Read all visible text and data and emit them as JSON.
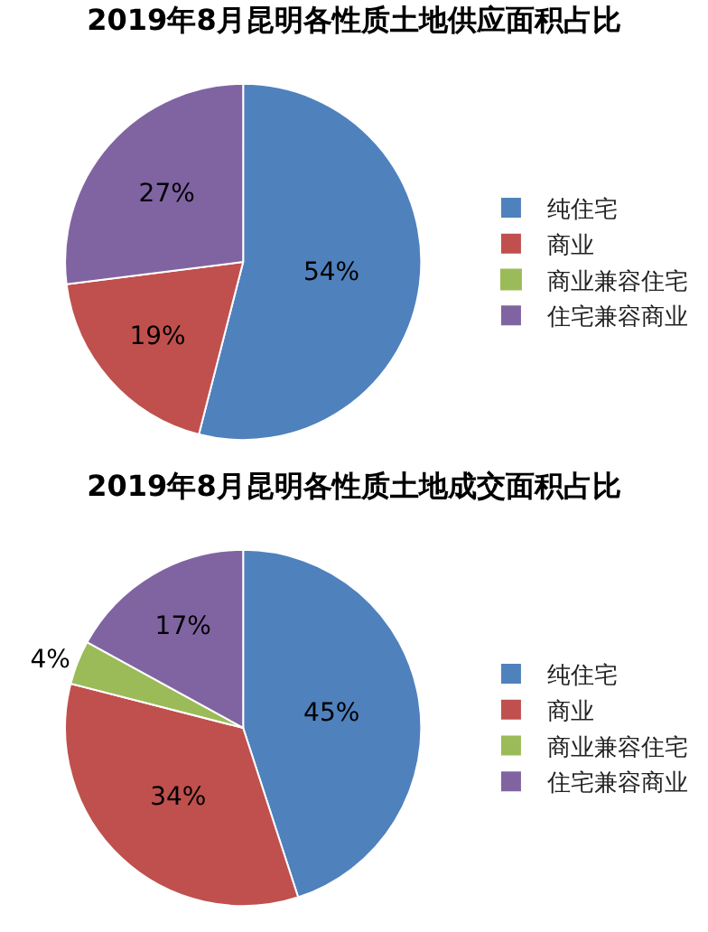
{
  "chart_data": [
    {
      "type": "pie",
      "title": "2019年8月昆明各性质土地供应面积占比",
      "categories": [
        "纯住宅",
        "商业",
        "商业兼容住宅",
        "住宅兼容商业"
      ],
      "values": [
        54,
        19,
        0,
        27
      ],
      "value_labels": [
        "54%",
        "19%",
        null,
        "27%"
      ],
      "colors": [
        "#4f81bd",
        "#c0504d",
        "#9bbb59",
        "#8064a2"
      ],
      "legend": "right"
    },
    {
      "type": "pie",
      "title": "2019年8月昆明各性质土地成交面积占比",
      "categories": [
        "纯住宅",
        "商业",
        "商业兼容住宅",
        "住宅兼容商业"
      ],
      "values": [
        45,
        34,
        4,
        17
      ],
      "value_labels": [
        "45%",
        "34%",
        "4%",
        "17%"
      ],
      "colors": [
        "#4f81bd",
        "#c0504d",
        "#9bbb59",
        "#8064a2"
      ],
      "legend": "right"
    }
  ]
}
